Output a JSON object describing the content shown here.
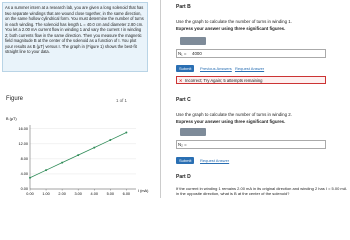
{
  "problem": {
    "text": "As a summer intern at a research lab, you are given a long solenoid that has two separate windings that are wound close together, in the same direction, on the same hollow cylindrical form. You must determine the number of turns in each winding. The solenoid has length L = 40.0 cm and diameter 2.80 cm. You let a 2.00 mA current flow in winding 1 and vary the current I in winding 2; both currents flow in the same direction. Then you measure the magnetic field magnitude B at the center of the solenoid as a function of I. You plot your results as B (μT) versus I. The graph in (Figure 1) shows the best-fit straight line to your data."
  },
  "figure": {
    "heading": "Figure",
    "pager": "1 of 1"
  },
  "chart_data": {
    "type": "line",
    "y_label": "B (μT)",
    "x_label": "I (mA)",
    "x": [
      0,
      1,
      2,
      3,
      4,
      5,
      6
    ],
    "series": [
      {
        "name": "best fit",
        "color": "#2e8b57",
        "values": [
          3,
          5,
          7,
          9,
          11,
          13,
          15
        ]
      }
    ],
    "xlim": [
      0,
      6.6
    ],
    "ylim": [
      0,
      17
    ],
    "xticks": [
      {
        "value": 0,
        "label": "0.00"
      },
      {
        "value": 1,
        "label": "1.00"
      },
      {
        "value": 2,
        "label": "2.00"
      },
      {
        "value": 3,
        "label": "3.00"
      },
      {
        "value": 4,
        "label": "4.00"
      },
      {
        "value": 5,
        "label": "5.00"
      },
      {
        "value": 6,
        "label": "6.00"
      }
    ],
    "yticks": [
      {
        "value": 0,
        "label": "0.00"
      },
      {
        "value": 4,
        "label": "4.00"
      },
      {
        "value": 8,
        "label": "8.00"
      },
      {
        "value": 12,
        "label": "12.00"
      },
      {
        "value": 16,
        "label": "16.00"
      }
    ]
  },
  "parts": [
    {
      "label": "Part B",
      "prompt": "Use the graph to calculate the number of turns in winding 1.",
      "instruction": "Express your answer using three significant figures.",
      "answer_label": "N₁ =",
      "answer_value": "4000",
      "buttons": [
        "Submit",
        "Previous Answers",
        "Request Answer"
      ],
      "feedback": "Incorrect; Try Again; 5 attempts remaining"
    },
    {
      "label": "Part C",
      "prompt": "Use the graph to calculate the number of turns in winding 2.",
      "instruction": "Express your answer using three significant figures.",
      "answer_label": "N₂ =",
      "buttons": [
        "Submit",
        "Request Answer"
      ]
    },
    {
      "label": "Part D",
      "prompt": "If the current in winding 1 remains 2.00 mA in its original direction and winding 2 has I = 5.00 mA in the opposite direction, what is B at the center of the solenoid?"
    }
  ]
}
